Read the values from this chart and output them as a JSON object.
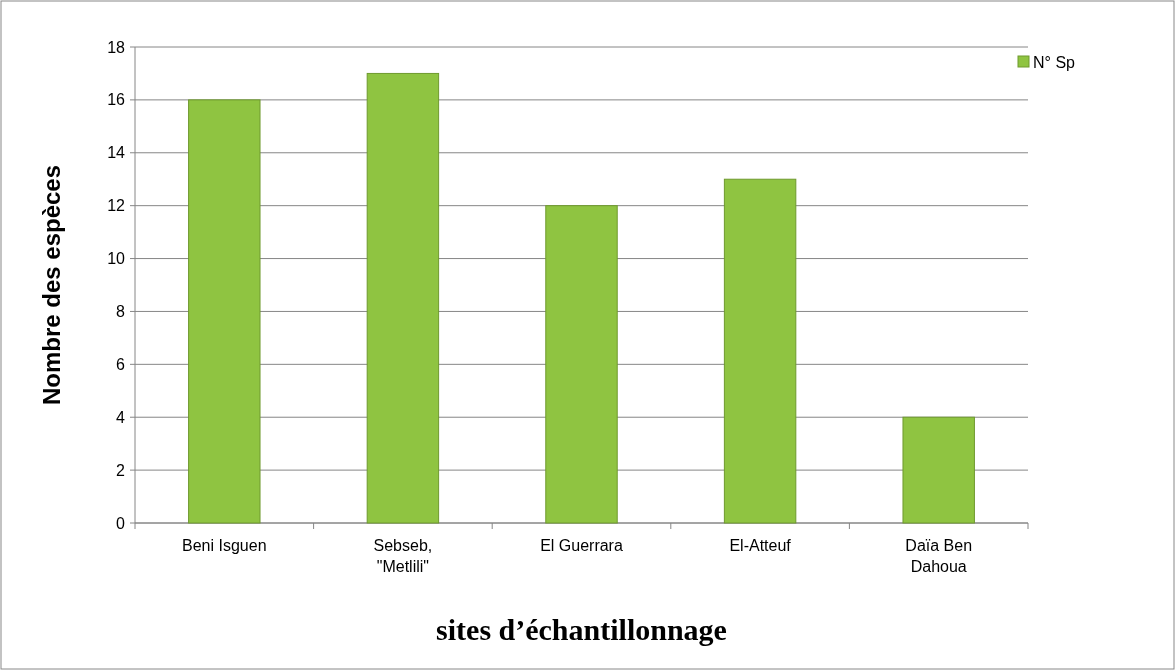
{
  "chart_data": {
    "type": "bar",
    "xlabel": "sites d’échantillonnage",
    "ylabel": "Nombre des espèces",
    "categories": [
      "Beni Isguen",
      "Sebseb, \"Metlili\"",
      "El Guerrara",
      "El-Atteuf",
      "Daïa Ben Dahoua"
    ],
    "series": [
      {
        "name": "N° Sp",
        "color": "#8fc441",
        "values": [
          16,
          17,
          12,
          13,
          4
        ]
      }
    ],
    "ylim": [
      0,
      18
    ],
    "yticks": [
      0,
      2,
      4,
      6,
      8,
      10,
      12,
      14,
      16,
      18
    ],
    "grid": "y",
    "legend": "top right"
  }
}
